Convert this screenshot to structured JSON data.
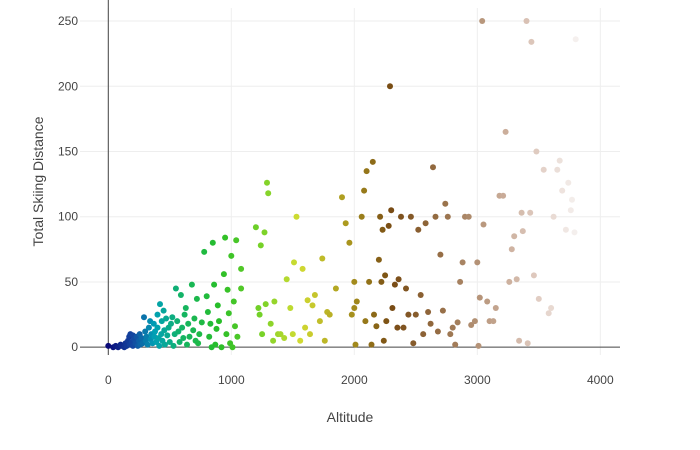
{
  "chart_data": {
    "type": "scatter",
    "title": "",
    "xlabel": "Altitude",
    "ylabel": "Total Skiing Distance",
    "xlim": [
      -230,
      4160
    ],
    "ylim": [
      -6,
      260
    ],
    "x_ticks": [
      0,
      1000,
      2000,
      3000,
      4000
    ],
    "y_ticks": [
      0,
      50,
      100,
      150,
      200,
      250
    ],
    "x_tick_labels": [
      "0",
      "1000",
      "2000",
      "3000",
      "4000"
    ],
    "y_tick_labels": [
      "0",
      "50",
      "100",
      "150",
      "200",
      "250"
    ],
    "grid": true,
    "legend": "none",
    "colorscale": "gist_earth (by altitude)",
    "points": [
      [
        0,
        1
      ],
      [
        40,
        0
      ],
      [
        60,
        1
      ],
      [
        80,
        0
      ],
      [
        100,
        2
      ],
      [
        110,
        1
      ],
      [
        130,
        0
      ],
      [
        140,
        3
      ],
      [
        150,
        1
      ],
      [
        160,
        5
      ],
      [
        170,
        8
      ],
      [
        175,
        2
      ],
      [
        180,
        10
      ],
      [
        190,
        4
      ],
      [
        200,
        9
      ],
      [
        200,
        1
      ],
      [
        210,
        6
      ],
      [
        220,
        3
      ],
      [
        230,
        8
      ],
      [
        240,
        1
      ],
      [
        250,
        5
      ],
      [
        255,
        10
      ],
      [
        260,
        2
      ],
      [
        270,
        7
      ],
      [
        280,
        3
      ],
      [
        290,
        23
      ],
      [
        300,
        12
      ],
      [
        305,
        5
      ],
      [
        310,
        8
      ],
      [
        320,
        2
      ],
      [
        330,
        15
      ],
      [
        340,
        20
      ],
      [
        345,
        6
      ],
      [
        350,
        10
      ],
      [
        360,
        3
      ],
      [
        370,
        18
      ],
      [
        375,
        8
      ],
      [
        380,
        12
      ],
      [
        390,
        4
      ],
      [
        400,
        25
      ],
      [
        400,
        15
      ],
      [
        410,
        7
      ],
      [
        415,
        1
      ],
      [
        420,
        33
      ],
      [
        430,
        10
      ],
      [
        435,
        20
      ],
      [
        440,
        5
      ],
      [
        450,
        28
      ],
      [
        455,
        13
      ],
      [
        460,
        2
      ],
      [
        470,
        22
      ],
      [
        480,
        9
      ],
      [
        490,
        15
      ],
      [
        500,
        4
      ],
      [
        510,
        18
      ],
      [
        520,
        23
      ],
      [
        530,
        1
      ],
      [
        540,
        10
      ],
      [
        550,
        45
      ],
      [
        560,
        20
      ],
      [
        570,
        12
      ],
      [
        580,
        4
      ],
      [
        590,
        40
      ],
      [
        600,
        15
      ],
      [
        610,
        7
      ],
      [
        620,
        25
      ],
      [
        630,
        30
      ],
      [
        640,
        2
      ],
      [
        650,
        18
      ],
      [
        660,
        8
      ],
      [
        680,
        48
      ],
      [
        690,
        13
      ],
      [
        700,
        22
      ],
      [
        710,
        5
      ],
      [
        720,
        37
      ],
      [
        730,
        3
      ],
      [
        740,
        10
      ],
      [
        760,
        19
      ],
      [
        780,
        73
      ],
      [
        800,
        39
      ],
      [
        810,
        27
      ],
      [
        820,
        8
      ],
      [
        830,
        18
      ],
      [
        840,
        0
      ],
      [
        850,
        80
      ],
      [
        860,
        48
      ],
      [
        870,
        2
      ],
      [
        880,
        14
      ],
      [
        890,
        32
      ],
      [
        900,
        20
      ],
      [
        920,
        0
      ],
      [
        940,
        56
      ],
      [
        950,
        84
      ],
      [
        960,
        10
      ],
      [
        970,
        44
      ],
      [
        980,
        26
      ],
      [
        990,
        3
      ],
      [
        1000,
        70
      ],
      [
        1010,
        0
      ],
      [
        1020,
        35
      ],
      [
        1030,
        16
      ],
      [
        1040,
        82
      ],
      [
        1050,
        8
      ],
      [
        1080,
        45
      ],
      [
        1080,
        60
      ],
      [
        1200,
        92
      ],
      [
        1220,
        30
      ],
      [
        1230,
        25
      ],
      [
        1240,
        78
      ],
      [
        1250,
        10
      ],
      [
        1270,
        88
      ],
      [
        1280,
        33
      ],
      [
        1290,
        126
      ],
      [
        1300,
        118
      ],
      [
        1320,
        18
      ],
      [
        1340,
        5
      ],
      [
        1350,
        35
      ],
      [
        1380,
        10
      ],
      [
        1400,
        10
      ],
      [
        1430,
        7
      ],
      [
        1450,
        52
      ],
      [
        1480,
        30
      ],
      [
        1500,
        10
      ],
      [
        1510,
        65
      ],
      [
        1530,
        100
      ],
      [
        1560,
        5
      ],
      [
        1580,
        60
      ],
      [
        1600,
        15
      ],
      [
        1620,
        36
      ],
      [
        1640,
        10
      ],
      [
        1660,
        32
      ],
      [
        1680,
        40
      ],
      [
        1720,
        20
      ],
      [
        1740,
        68
      ],
      [
        1760,
        5
      ],
      [
        1780,
        27
      ],
      [
        1800,
        25
      ],
      [
        1850,
        45
      ],
      [
        1900,
        115
      ],
      [
        1930,
        95
      ],
      [
        1960,
        80
      ],
      [
        1980,
        25
      ],
      [
        2000,
        30
      ],
      [
        2000,
        50
      ],
      [
        2010,
        2
      ],
      [
        2020,
        35
      ],
      [
        2060,
        100
      ],
      [
        2080,
        120
      ],
      [
        2090,
        20
      ],
      [
        2100,
        135
      ],
      [
        2120,
        50
      ],
      [
        2140,
        2
      ],
      [
        2150,
        142
      ],
      [
        2160,
        25
      ],
      [
        2180,
        16
      ],
      [
        2200,
        67
      ],
      [
        2210,
        100
      ],
      [
        2220,
        50
      ],
      [
        2230,
        90
      ],
      [
        2240,
        5
      ],
      [
        2250,
        55
      ],
      [
        2260,
        20
      ],
      [
        2280,
        93
      ],
      [
        2290,
        200
      ],
      [
        2300,
        105
      ],
      [
        2310,
        30
      ],
      [
        2330,
        48
      ],
      [
        2350,
        15
      ],
      [
        2360,
        52
      ],
      [
        2380,
        100
      ],
      [
        2400,
        15
      ],
      [
        2420,
        45
      ],
      [
        2440,
        25
      ],
      [
        2460,
        100
      ],
      [
        2480,
        3
      ],
      [
        2500,
        25
      ],
      [
        2520,
        90
      ],
      [
        2540,
        40
      ],
      [
        2560,
        10
      ],
      [
        2580,
        95
      ],
      [
        2600,
        27
      ],
      [
        2620,
        18
      ],
      [
        2640,
        138
      ],
      [
        2660,
        100
      ],
      [
        2680,
        12
      ],
      [
        2700,
        71
      ],
      [
        2720,
        28
      ],
      [
        2740,
        110
      ],
      [
        2760,
        100
      ],
      [
        2780,
        10
      ],
      [
        2800,
        15
      ],
      [
        2820,
        2
      ],
      [
        2840,
        19
      ],
      [
        2860,
        50
      ],
      [
        2880,
        65
      ],
      [
        2900,
        100
      ],
      [
        2930,
        100
      ],
      [
        2950,
        17
      ],
      [
        2980,
        20
      ],
      [
        3000,
        65
      ],
      [
        3010,
        1
      ],
      [
        3020,
        38
      ],
      [
        3040,
        250
      ],
      [
        3050,
        94
      ],
      [
        3080,
        35
      ],
      [
        3100,
        20
      ],
      [
        3130,
        20
      ],
      [
        3150,
        30
      ],
      [
        3180,
        116
      ],
      [
        3210,
        116
      ],
      [
        3230,
        165
      ],
      [
        3260,
        50
      ],
      [
        3280,
        75
      ],
      [
        3300,
        85
      ],
      [
        3320,
        52
      ],
      [
        3340,
        5
      ],
      [
        3360,
        103
      ],
      [
        3370,
        89
      ],
      [
        3400,
        250
      ],
      [
        3410,
        3
      ],
      [
        3430,
        103
      ],
      [
        3440,
        234
      ],
      [
        3460,
        55
      ],
      [
        3480,
        150
      ],
      [
        3500,
        37
      ],
      [
        3540,
        136
      ],
      [
        3580,
        26
      ],
      [
        3600,
        30
      ],
      [
        3620,
        100
      ],
      [
        3650,
        136
      ],
      [
        3670,
        143
      ],
      [
        3690,
        120
      ],
      [
        3720,
        90
      ],
      [
        3740,
        126
      ],
      [
        3760,
        105
      ],
      [
        3770,
        113
      ],
      [
        3790,
        88
      ],
      [
        3800,
        236
      ]
    ]
  }
}
